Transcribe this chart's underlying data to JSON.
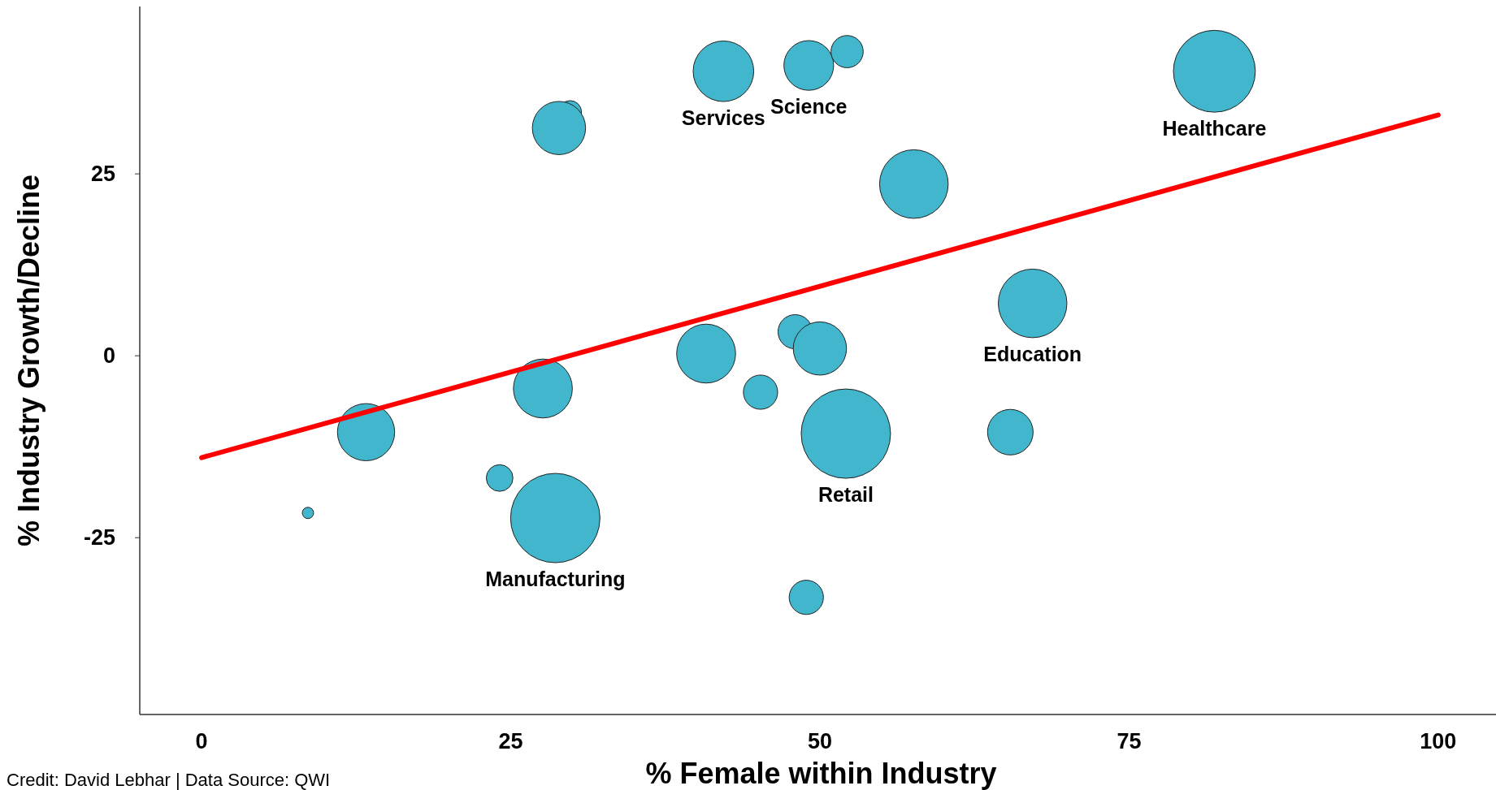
{
  "chart_data": {
    "type": "bubble",
    "xlabel": "% Female within Industry",
    "ylabel": "% Industry Growth/Decline",
    "xlim": [
      -5,
      105.2
    ],
    "ylim": [
      -49.3,
      48
    ],
    "xticks": [
      0,
      25,
      50,
      75,
      100
    ],
    "yticks": [
      -25,
      0,
      25
    ],
    "grid": false,
    "series": [
      {
        "color": "#41b6cc",
        "x": [
          8.6,
          13.3,
          24.1,
          27.6,
          28.6,
          29.8,
          28.9,
          40.8,
          45.2,
          48.0,
          50.0,
          52.1,
          48.9,
          42.2,
          49.1,
          52.2,
          57.6,
          67.2,
          65.4,
          81.9
        ],
        "values": [
          -21.6,
          -10.5,
          -16.8,
          -4.5,
          -22.3,
          33.5,
          31.3,
          0.3,
          -5.0,
          3.3,
          1.0,
          -10.7,
          -33.2,
          39.1,
          39.9,
          41.8,
          23.6,
          7.2,
          -10.5,
          39.1
        ],
        "sizes": [
          0.016,
          0.41,
          0.089,
          0.435,
          1,
          0.065,
          0.355,
          0.435,
          0.147,
          0.147,
          0.355,
          1,
          0.147,
          0.46,
          0.31,
          0.13,
          0.59,
          0.59,
          0.26,
          0.84
        ]
      },
      {
        "type": "line",
        "color": "#ff0000",
        "x": [
          0,
          100
        ],
        "values": [
          -14.0,
          33.1
        ]
      }
    ],
    "annotations": [
      {
        "text": "Services",
        "x": 42.2,
        "y": 39.1
      },
      {
        "text": "Science",
        "x": 49.1,
        "y": 39.9
      },
      {
        "text": "Healthcare",
        "x": 81.9,
        "y": 39.1
      },
      {
        "text": "Education",
        "x": 67.2,
        "y": 7.2
      },
      {
        "text": "Retail",
        "x": 52.1,
        "y": -10.7
      },
      {
        "text": "Manufacturing",
        "x": 28.6,
        "y": -22.3
      },
      "Credit: David Lebhar | Data Source: QWI"
    ]
  }
}
